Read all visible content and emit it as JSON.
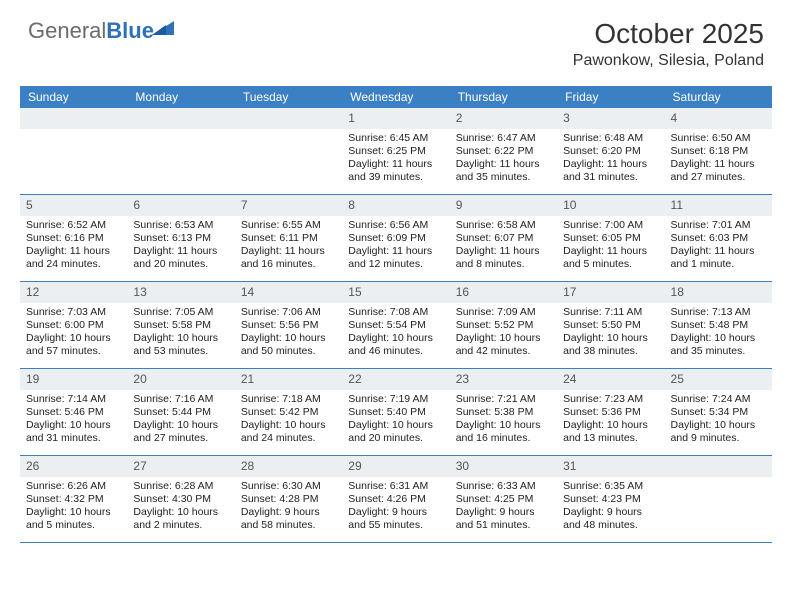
{
  "logo": {
    "text1": "General",
    "text2": "Blue"
  },
  "title": "October 2025",
  "location": "Pawonkow, Silesia, Poland",
  "colors": {
    "header_bg": "#3b7fc4",
    "header_text": "#ffffff",
    "daynum_bg": "#eceff1",
    "border": "#3b7fc4",
    "logo_gray": "#6b6b6b",
    "logo_blue": "#2f71b8"
  },
  "day_names": [
    "Sunday",
    "Monday",
    "Tuesday",
    "Wednesday",
    "Thursday",
    "Friday",
    "Saturday"
  ],
  "weeks": [
    [
      {
        "n": "",
        "sr": "",
        "ss": "",
        "dl": ""
      },
      {
        "n": "",
        "sr": "",
        "ss": "",
        "dl": ""
      },
      {
        "n": "",
        "sr": "",
        "ss": "",
        "dl": ""
      },
      {
        "n": "1",
        "sr": "Sunrise: 6:45 AM",
        "ss": "Sunset: 6:25 PM",
        "dl": "Daylight: 11 hours and 39 minutes."
      },
      {
        "n": "2",
        "sr": "Sunrise: 6:47 AM",
        "ss": "Sunset: 6:22 PM",
        "dl": "Daylight: 11 hours and 35 minutes."
      },
      {
        "n": "3",
        "sr": "Sunrise: 6:48 AM",
        "ss": "Sunset: 6:20 PM",
        "dl": "Daylight: 11 hours and 31 minutes."
      },
      {
        "n": "4",
        "sr": "Sunrise: 6:50 AM",
        "ss": "Sunset: 6:18 PM",
        "dl": "Daylight: 11 hours and 27 minutes."
      }
    ],
    [
      {
        "n": "5",
        "sr": "Sunrise: 6:52 AM",
        "ss": "Sunset: 6:16 PM",
        "dl": "Daylight: 11 hours and 24 minutes."
      },
      {
        "n": "6",
        "sr": "Sunrise: 6:53 AM",
        "ss": "Sunset: 6:13 PM",
        "dl": "Daylight: 11 hours and 20 minutes."
      },
      {
        "n": "7",
        "sr": "Sunrise: 6:55 AM",
        "ss": "Sunset: 6:11 PM",
        "dl": "Daylight: 11 hours and 16 minutes."
      },
      {
        "n": "8",
        "sr": "Sunrise: 6:56 AM",
        "ss": "Sunset: 6:09 PM",
        "dl": "Daylight: 11 hours and 12 minutes."
      },
      {
        "n": "9",
        "sr": "Sunrise: 6:58 AM",
        "ss": "Sunset: 6:07 PM",
        "dl": "Daylight: 11 hours and 8 minutes."
      },
      {
        "n": "10",
        "sr": "Sunrise: 7:00 AM",
        "ss": "Sunset: 6:05 PM",
        "dl": "Daylight: 11 hours and 5 minutes."
      },
      {
        "n": "11",
        "sr": "Sunrise: 7:01 AM",
        "ss": "Sunset: 6:03 PM",
        "dl": "Daylight: 11 hours and 1 minute."
      }
    ],
    [
      {
        "n": "12",
        "sr": "Sunrise: 7:03 AM",
        "ss": "Sunset: 6:00 PM",
        "dl": "Daylight: 10 hours and 57 minutes."
      },
      {
        "n": "13",
        "sr": "Sunrise: 7:05 AM",
        "ss": "Sunset: 5:58 PM",
        "dl": "Daylight: 10 hours and 53 minutes."
      },
      {
        "n": "14",
        "sr": "Sunrise: 7:06 AM",
        "ss": "Sunset: 5:56 PM",
        "dl": "Daylight: 10 hours and 50 minutes."
      },
      {
        "n": "15",
        "sr": "Sunrise: 7:08 AM",
        "ss": "Sunset: 5:54 PM",
        "dl": "Daylight: 10 hours and 46 minutes."
      },
      {
        "n": "16",
        "sr": "Sunrise: 7:09 AM",
        "ss": "Sunset: 5:52 PM",
        "dl": "Daylight: 10 hours and 42 minutes."
      },
      {
        "n": "17",
        "sr": "Sunrise: 7:11 AM",
        "ss": "Sunset: 5:50 PM",
        "dl": "Daylight: 10 hours and 38 minutes."
      },
      {
        "n": "18",
        "sr": "Sunrise: 7:13 AM",
        "ss": "Sunset: 5:48 PM",
        "dl": "Daylight: 10 hours and 35 minutes."
      }
    ],
    [
      {
        "n": "19",
        "sr": "Sunrise: 7:14 AM",
        "ss": "Sunset: 5:46 PM",
        "dl": "Daylight: 10 hours and 31 minutes."
      },
      {
        "n": "20",
        "sr": "Sunrise: 7:16 AM",
        "ss": "Sunset: 5:44 PM",
        "dl": "Daylight: 10 hours and 27 minutes."
      },
      {
        "n": "21",
        "sr": "Sunrise: 7:18 AM",
        "ss": "Sunset: 5:42 PM",
        "dl": "Daylight: 10 hours and 24 minutes."
      },
      {
        "n": "22",
        "sr": "Sunrise: 7:19 AM",
        "ss": "Sunset: 5:40 PM",
        "dl": "Daylight: 10 hours and 20 minutes."
      },
      {
        "n": "23",
        "sr": "Sunrise: 7:21 AM",
        "ss": "Sunset: 5:38 PM",
        "dl": "Daylight: 10 hours and 16 minutes."
      },
      {
        "n": "24",
        "sr": "Sunrise: 7:23 AM",
        "ss": "Sunset: 5:36 PM",
        "dl": "Daylight: 10 hours and 13 minutes."
      },
      {
        "n": "25",
        "sr": "Sunrise: 7:24 AM",
        "ss": "Sunset: 5:34 PM",
        "dl": "Daylight: 10 hours and 9 minutes."
      }
    ],
    [
      {
        "n": "26",
        "sr": "Sunrise: 6:26 AM",
        "ss": "Sunset: 4:32 PM",
        "dl": "Daylight: 10 hours and 5 minutes."
      },
      {
        "n": "27",
        "sr": "Sunrise: 6:28 AM",
        "ss": "Sunset: 4:30 PM",
        "dl": "Daylight: 10 hours and 2 minutes."
      },
      {
        "n": "28",
        "sr": "Sunrise: 6:30 AM",
        "ss": "Sunset: 4:28 PM",
        "dl": "Daylight: 9 hours and 58 minutes."
      },
      {
        "n": "29",
        "sr": "Sunrise: 6:31 AM",
        "ss": "Sunset: 4:26 PM",
        "dl": "Daylight: 9 hours and 55 minutes."
      },
      {
        "n": "30",
        "sr": "Sunrise: 6:33 AM",
        "ss": "Sunset: 4:25 PM",
        "dl": "Daylight: 9 hours and 51 minutes."
      },
      {
        "n": "31",
        "sr": "Sunrise: 6:35 AM",
        "ss": "Sunset: 4:23 PM",
        "dl": "Daylight: 9 hours and 48 minutes."
      },
      {
        "n": "",
        "sr": "",
        "ss": "",
        "dl": ""
      }
    ]
  ]
}
